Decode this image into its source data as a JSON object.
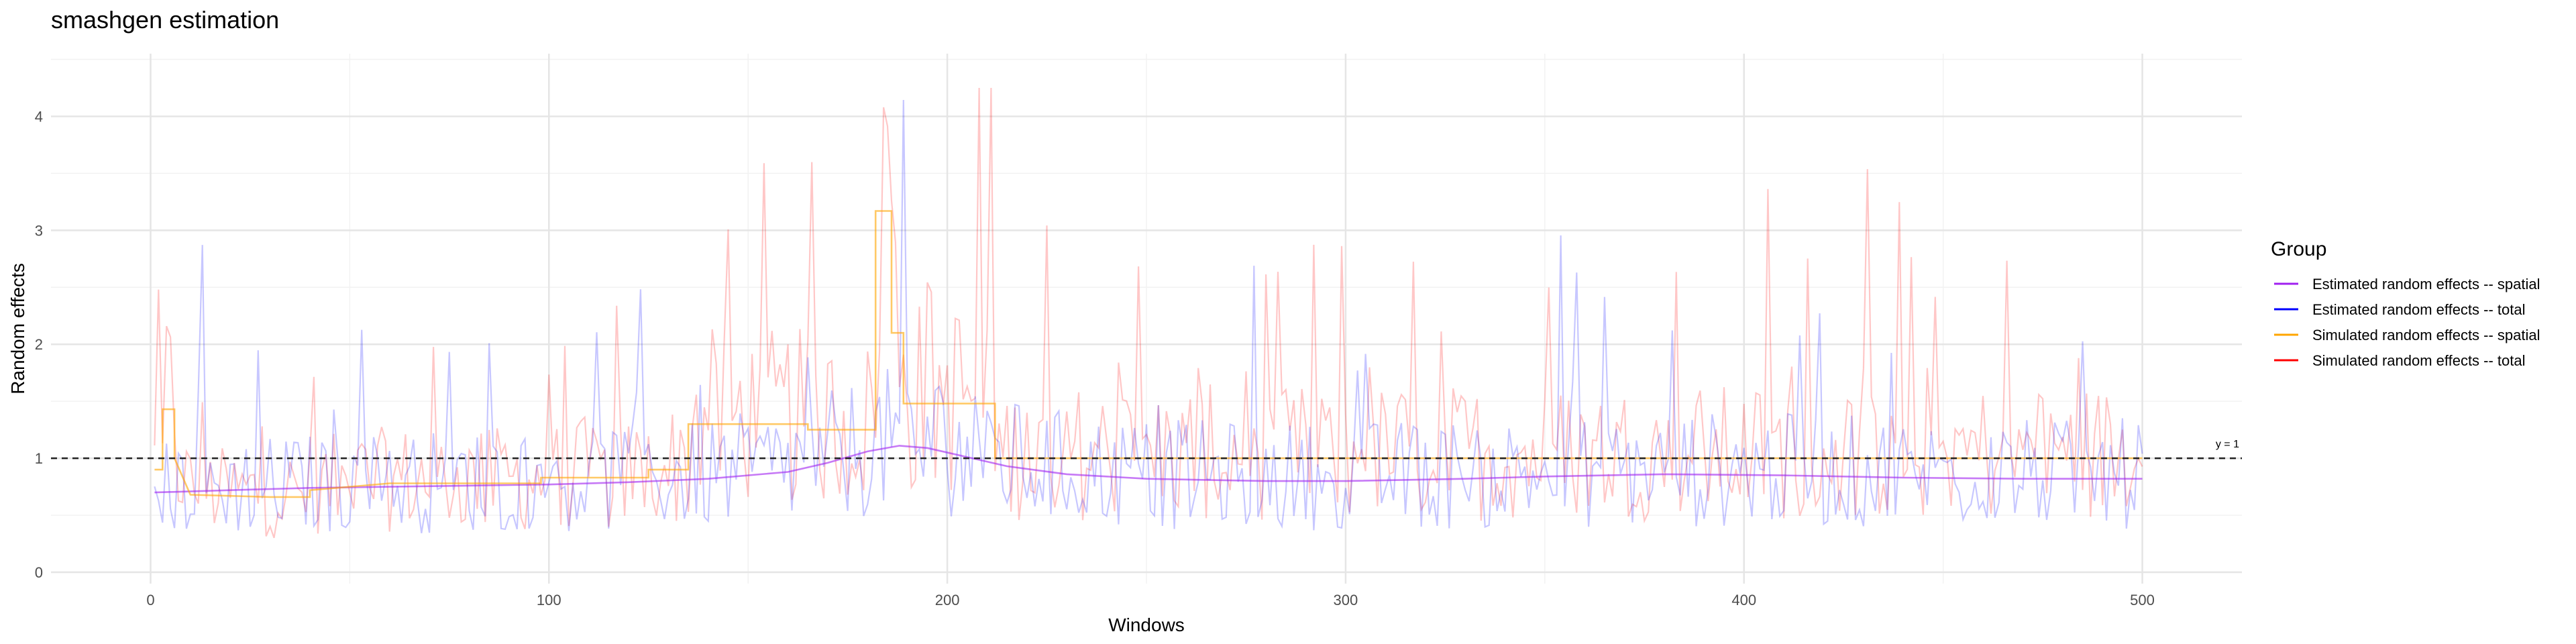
{
  "chart_data": {
    "type": "line",
    "title": "smashgen estimation",
    "xlabel": "Windows",
    "ylabel": "Random effects",
    "xlim": [
      -25,
      525
    ],
    "ylim": [
      -0.1,
      4.55
    ],
    "x_ticks": [
      0,
      100,
      200,
      300,
      400,
      500
    ],
    "y_ticks": [
      0,
      1,
      2,
      3,
      4
    ],
    "grid": true,
    "legend": {
      "title": "Group",
      "position": "right",
      "entries": [
        {
          "label": "Estimated random effects -- spatial",
          "color": "#A020F0"
        },
        {
          "label": "Estimated random effects -- total",
          "color": "#0000FF"
        },
        {
          "label": "Simulated random effects -- spatial",
          "color": "#FFA500"
        },
        {
          "label": "Simulated random effects -- total",
          "color": "#FF0000"
        }
      ]
    },
    "reference_line": {
      "y": 1,
      "label": "y = 1",
      "style": "dashed"
    },
    "series": [
      {
        "name": "Estimated random effects -- spatial",
        "color": "#A020F0",
        "points": [
          [
            1,
            0.7
          ],
          [
            20,
            0.72
          ],
          [
            40,
            0.74
          ],
          [
            60,
            0.75
          ],
          [
            80,
            0.76
          ],
          [
            100,
            0.77
          ],
          [
            120,
            0.79
          ],
          [
            140,
            0.82
          ],
          [
            160,
            0.88
          ],
          [
            170,
            0.96
          ],
          [
            180,
            1.06
          ],
          [
            188,
            1.11
          ],
          [
            195,
            1.09
          ],
          [
            205,
            1.01
          ],
          [
            215,
            0.93
          ],
          [
            230,
            0.86
          ],
          [
            250,
            0.82
          ],
          [
            280,
            0.8
          ],
          [
            300,
            0.8
          ],
          [
            330,
            0.82
          ],
          [
            350,
            0.84
          ],
          [
            380,
            0.86
          ],
          [
            410,
            0.85
          ],
          [
            440,
            0.83
          ],
          [
            470,
            0.82
          ],
          [
            500,
            0.82
          ]
        ]
      },
      {
        "name": "Simulated random effects -- spatial",
        "color": "#FFA500",
        "points": [
          [
            1,
            0.9
          ],
          [
            3,
            0.9
          ],
          [
            3,
            1.43
          ],
          [
            6,
            1.43
          ],
          [
            6,
            1.0
          ],
          [
            10,
            0.68
          ],
          [
            30,
            0.66
          ],
          [
            40,
            0.66
          ],
          [
            40,
            0.72
          ],
          [
            60,
            0.78
          ],
          [
            98,
            0.78
          ],
          [
            98,
            0.83
          ],
          [
            125,
            0.83
          ],
          [
            125,
            0.9
          ],
          [
            135,
            0.9
          ],
          [
            135,
            1.3
          ],
          [
            165,
            1.3
          ],
          [
            165,
            1.25
          ],
          [
            182,
            1.25
          ],
          [
            182,
            3.17
          ],
          [
            186,
            3.17
          ],
          [
            186,
            2.1
          ],
          [
            189,
            2.1
          ],
          [
            189,
            1.48
          ],
          [
            212,
            1.48
          ],
          [
            212,
            1.0
          ],
          [
            500,
            1.0
          ]
        ]
      }
    ],
    "noisy_series": [
      {
        "name": "Estimated random effects -- total",
        "color": "#0000FF",
        "n_points": 500,
        "y_min": 0.1,
        "y_max": 4.4
      },
      {
        "name": "Simulated random effects -- total",
        "color": "#FF0000",
        "n_points": 500,
        "y_min": 0.05,
        "y_max": 4.25
      }
    ]
  }
}
